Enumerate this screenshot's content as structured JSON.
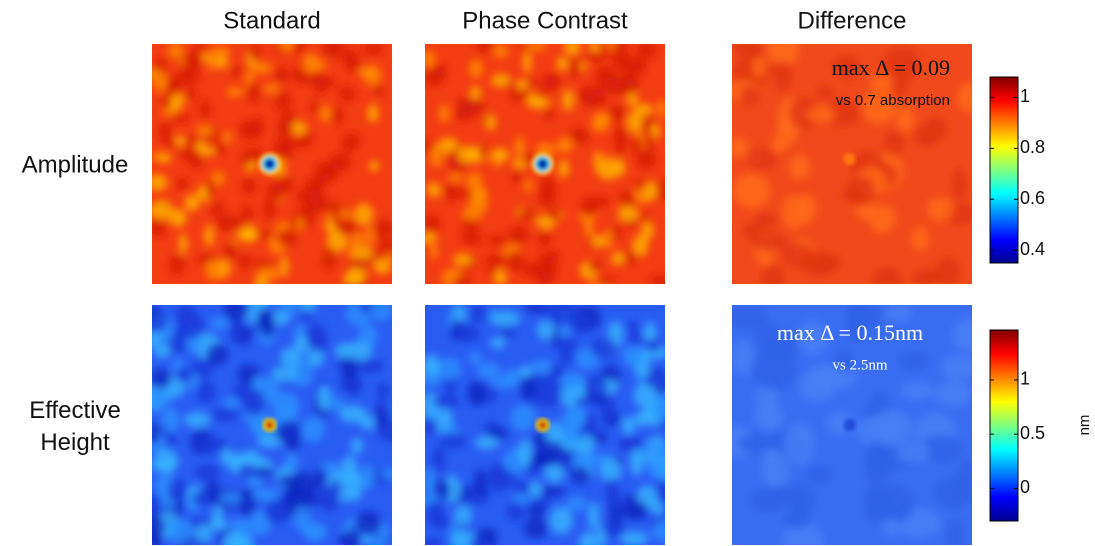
{
  "columns": [
    "Standard",
    "Phase Contrast",
    "Difference"
  ],
  "rows": [
    {
      "label": "Amplitude",
      "annotation": "max Δ = 0.09",
      "note": "vs 0.7 absorption",
      "colorbar": {
        "lim": [
          0.35,
          1.08
        ],
        "ticks": [
          0.4,
          0.6,
          0.8,
          1
        ]
      }
    },
    {
      "label": "Effective Height",
      "annotation": "max Δ = 0.15nm",
      "note": "vs 2.5nm",
      "colorbar": {
        "lim": [
          -0.3,
          1.46
        ],
        "ticks": [
          0,
          0.5,
          1
        ],
        "unit": "nm"
      }
    }
  ]
}
